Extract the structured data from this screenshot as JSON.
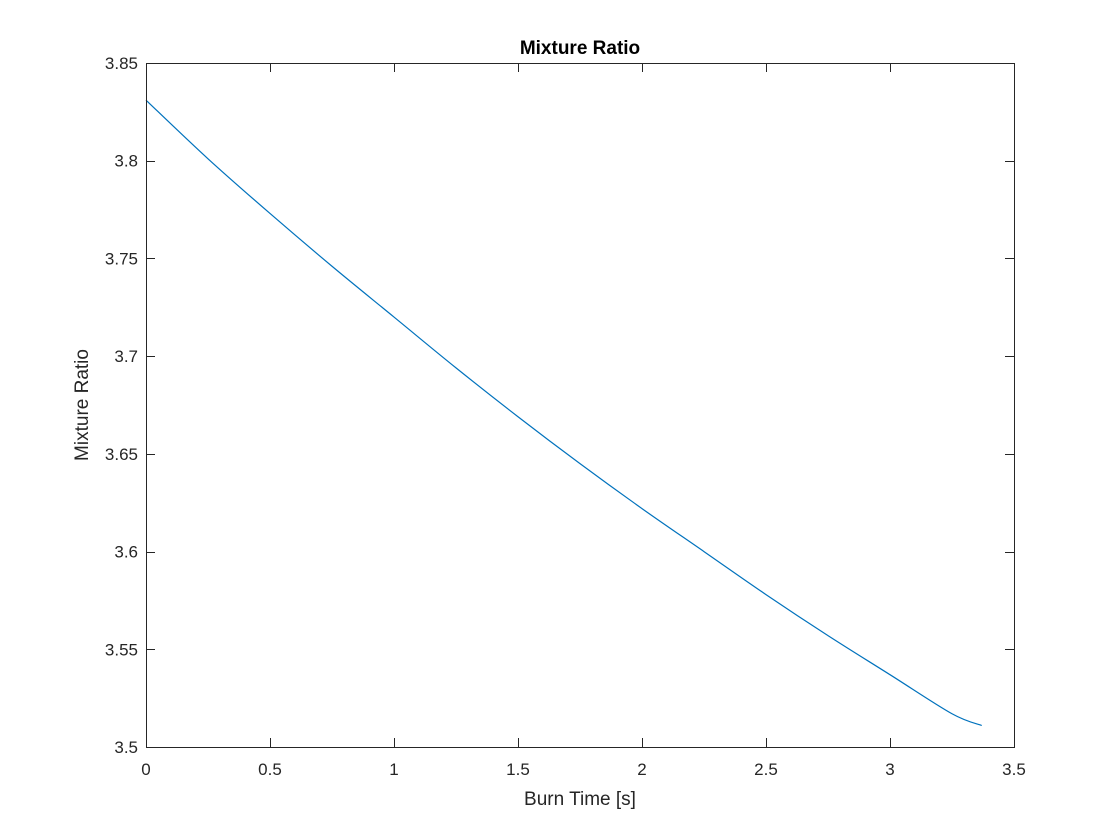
{
  "chart_data": {
    "type": "line",
    "title": "Mixture Ratio",
    "xlabel": "Burn Time [s]",
    "ylabel": "Mixture Ratio",
    "xlim": [
      0,
      3.5
    ],
    "ylim": [
      3.5,
      3.85
    ],
    "xticks": [
      0,
      0.5,
      1,
      1.5,
      2,
      2.5,
      3,
      3.5
    ],
    "xtick_labels": [
      "0",
      "0.5",
      "1",
      "1.5",
      "2",
      "2.5",
      "3",
      "3.5"
    ],
    "yticks": [
      3.5,
      3.55,
      3.6,
      3.65,
      3.7,
      3.75,
      3.8,
      3.85
    ],
    "ytick_labels": [
      "3.5",
      "3.55",
      "3.6",
      "3.65",
      "3.7",
      "3.75",
      "3.8",
      "3.85"
    ],
    "grid": false,
    "series": [
      {
        "color": "#0072bd",
        "x": [
          0,
          0.25,
          0.5,
          0.75,
          1.0,
          1.25,
          1.5,
          1.75,
          2.0,
          2.25,
          2.5,
          2.75,
          3.0,
          3.25,
          3.37
        ],
        "y": [
          3.831,
          3.801,
          3.773,
          3.746,
          3.72,
          3.694,
          3.669,
          3.645,
          3.622,
          3.6,
          3.578,
          3.557,
          3.537,
          3.517,
          3.511
        ]
      }
    ]
  }
}
